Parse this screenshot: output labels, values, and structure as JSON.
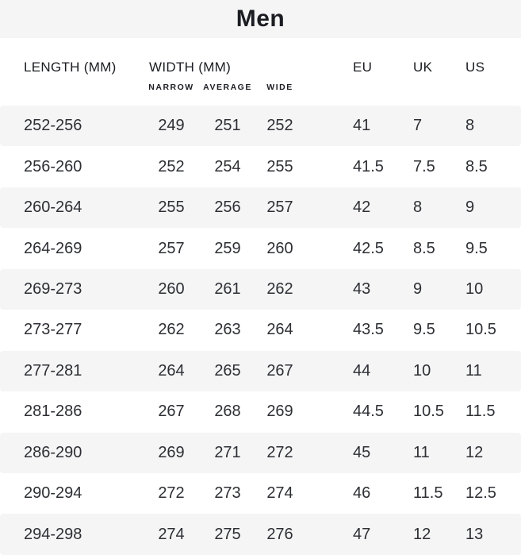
{
  "title": "Men",
  "colors": {
    "band": "#f5f5f6",
    "stripe": "#f5f5f6",
    "heading": "#1b1d22",
    "text": "#2d2f34"
  },
  "table": {
    "headers": {
      "length": "LENGTH (MM)",
      "width": "WIDTH (MM)",
      "narrow": "NARROW",
      "average": "AVERAGE",
      "wide": "WIDE",
      "eu": "EU",
      "uk": "UK",
      "us": "US"
    },
    "rows": [
      {
        "length": "252-256",
        "narrow": "249",
        "average": "251",
        "wide": "252",
        "eu": "41",
        "uk": "7",
        "us": "8"
      },
      {
        "length": "256-260",
        "narrow": "252",
        "average": "254",
        "wide": "255",
        "eu": "41.5",
        "uk": "7.5",
        "us": "8.5"
      },
      {
        "length": "260-264",
        "narrow": "255",
        "average": "256",
        "wide": "257",
        "eu": "42",
        "uk": "8",
        "us": "9"
      },
      {
        "length": "264-269",
        "narrow": "257",
        "average": "259",
        "wide": "260",
        "eu": "42.5",
        "uk": "8.5",
        "us": "9.5"
      },
      {
        "length": "269-273",
        "narrow": "260",
        "average": "261",
        "wide": "262",
        "eu": "43",
        "uk": "9",
        "us": "10"
      },
      {
        "length": "273-277",
        "narrow": "262",
        "average": "263",
        "wide": "264",
        "eu": "43.5",
        "uk": "9.5",
        "us": "10.5"
      },
      {
        "length": "277-281",
        "narrow": "264",
        "average": "265",
        "wide": "267",
        "eu": "44",
        "uk": "10",
        "us": "11"
      },
      {
        "length": "281-286",
        "narrow": "267",
        "average": "268",
        "wide": "269",
        "eu": "44.5",
        "uk": "10.5",
        "us": "11.5"
      },
      {
        "length": "286-290",
        "narrow": "269",
        "average": "271",
        "wide": "272",
        "eu": "45",
        "uk": "11",
        "us": "12"
      },
      {
        "length": "290-294",
        "narrow": "272",
        "average": "273",
        "wide": "274",
        "eu": "46",
        "uk": "11.5",
        "us": "12.5"
      },
      {
        "length": "294-298",
        "narrow": "274",
        "average": "275",
        "wide": "276",
        "eu": "47",
        "uk": "12",
        "us": "13"
      }
    ]
  }
}
